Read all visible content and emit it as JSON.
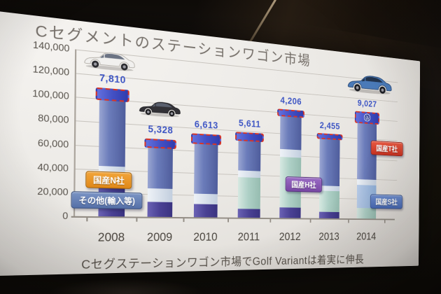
{
  "slide": {
    "title": "Cセグメントのステーションワゴン市場",
    "caption": "Cセグステーションワゴン市場でGolf Variantは着実に伸長"
  },
  "chart_data": {
    "type": "bar",
    "stacked": true,
    "title": "Cセグメントのステーションワゴン市場",
    "ylim": [
      0,
      140000
    ],
    "grid": true,
    "y_ticks": [
      "140,000",
      "120,000",
      "100,000",
      "80,000",
      "60,000",
      "40,000",
      "20,000",
      "0"
    ],
    "categories": [
      "2008",
      "2009",
      "2010",
      "2011",
      "2012",
      "2013",
      "2014"
    ],
    "highlight_series": "Golf Variant (red dashed top segment)",
    "value_labels": [
      "7,810",
      "5,328",
      "6,613",
      "5,611",
      "4,206",
      "2,455",
      "9,027"
    ],
    "bars": [
      {
        "year": "2008",
        "label": "7,810",
        "vw_logo": false,
        "segments": [
          {
            "type": "indigo",
            "value": 34000
          },
          {
            "type": "band",
            "value": 9000
          },
          {
            "type": "blue",
            "value": 56000
          },
          {
            "type": "vw",
            "value": 7810
          }
        ]
      },
      {
        "year": "2009",
        "label": "5,328",
        "vw_logo": false,
        "segments": [
          {
            "type": "indigo",
            "value": 13000
          },
          {
            "type": "band",
            "value": 12000
          },
          {
            "type": "blue",
            "value": 35500
          },
          {
            "type": "vw",
            "value": 5328
          }
        ]
      },
      {
        "year": "2010",
        "label": "6,613",
        "vw_logo": false,
        "segments": [
          {
            "type": "indigo",
            "value": 12000
          },
          {
            "type": "band",
            "value": 9000
          },
          {
            "type": "blue",
            "value": 45000
          },
          {
            "type": "vw",
            "value": 6613
          }
        ]
      },
      {
        "year": "2011",
        "label": "5,611",
        "vw_logo": false,
        "segments": [
          {
            "type": "indigo",
            "value": 8000
          },
          {
            "type": "teal",
            "value": 29500
          },
          {
            "type": "band",
            "value": 6000
          },
          {
            "type": "blue",
            "value": 27500
          },
          {
            "type": "vw",
            "value": 5611
          }
        ]
      },
      {
        "year": "2012",
        "label": "4,206",
        "vw_logo": false,
        "segments": [
          {
            "type": "indigo",
            "value": 10000
          },
          {
            "type": "teal",
            "value": 48000
          },
          {
            "type": "band",
            "value": 7500
          },
          {
            "type": "blue",
            "value": 31000
          },
          {
            "type": "vw",
            "value": 4206
          }
        ]
      },
      {
        "year": "2013",
        "label": "2,455",
        "vw_logo": false,
        "segments": [
          {
            "type": "indigo",
            "value": 6000
          },
          {
            "type": "teal",
            "value": 21000
          },
          {
            "type": "band",
            "value": 5000
          },
          {
            "type": "blue",
            "value": 45000
          },
          {
            "type": "vw",
            "value": 2455
          }
        ]
      },
      {
        "year": "2014",
        "label": "9,027",
        "vw_logo": true,
        "segments": [
          {
            "type": "teal",
            "value": 10500
          },
          {
            "type": "steel",
            "value": 23000
          },
          {
            "type": "band",
            "value": 6000
          },
          {
            "type": "blue",
            "value": 56000
          },
          {
            "type": "vw",
            "value": 9027
          }
        ]
      }
    ]
  },
  "badges": [
    {
      "id": "n",
      "text": "国産N社",
      "bg1": "#f2a53a",
      "bg2": "#e08818",
      "border": "#a96508"
    },
    {
      "id": "other",
      "text": "その他(輸入等)",
      "bg1": "#7b94c4",
      "bg2": "#5570a8",
      "border": "#3d5482"
    },
    {
      "id": "h",
      "text": "国産H社",
      "bg1": "#9a6cc4",
      "bg2": "#7847a4",
      "border": "#582f80"
    },
    {
      "id": "t",
      "text": "国産T社",
      "bg1": "#e85a42",
      "bg2": "#c93322",
      "border": "#97251a"
    },
    {
      "id": "s",
      "text": "国産S社",
      "bg1": "#6f8fd0",
      "bg2": "#4a6cb8",
      "border": "#34508e"
    }
  ],
  "cars": [
    {
      "id": "car-2008",
      "desc": "white station wagon",
      "body": "#f1f0ee",
      "outline": "#b3afa8",
      "window": "#6b7383",
      "wheel": "#2a2a2e"
    },
    {
      "id": "car-2009",
      "desc": "black station wagon",
      "body": "#323136",
      "outline": "#1d1c20",
      "window": "#5a606e",
      "wheel": "#17171a"
    },
    {
      "id": "car-2014",
      "desc": "blue golf variant",
      "body": "#4a7ab8",
      "outline": "#2c4a74",
      "window": "#22344e",
      "wheel": "#1c1e24"
    }
  ],
  "colors": {
    "dash_highlight": "#d93425",
    "value_label": "#3d55c4",
    "slide_background": "#edebe7",
    "title_text": "#76706a",
    "axis_text": "#57524b"
  }
}
